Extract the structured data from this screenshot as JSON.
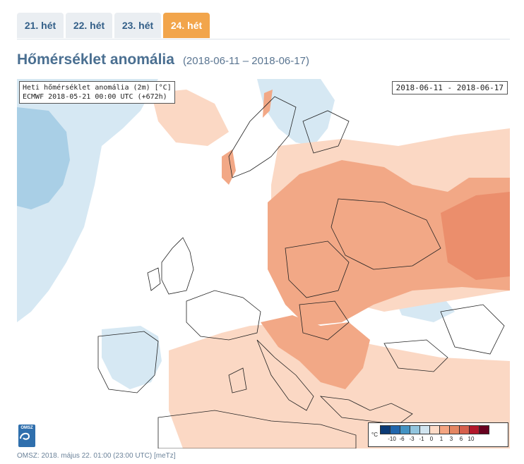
{
  "tabs": [
    {
      "label": "21. hét",
      "active": false
    },
    {
      "label": "22. hét",
      "active": false
    },
    {
      "label": "23. hét",
      "active": false
    },
    {
      "label": "24. hét",
      "active": true
    }
  ],
  "heading": {
    "title": "Hőmérséklet anomália",
    "date_range": "(2018-06-11 – 2018-06-17)"
  },
  "map": {
    "info_line1": "Heti hőmérséklet anomália (2m) [°C]",
    "info_line2": "ECMWF 2018-05-21 00:00 UTC (+672h)",
    "date_label": "2018-06-11 - 2018-06-17",
    "logo_text": "OMSZ",
    "legend": {
      "unit": "°C",
      "tick_labels": [
        "-10",
        "-6",
        "-3",
        "-1",
        "0",
        "1",
        "3",
        "6",
        "10"
      ],
      "colors": [
        "#0b3a75",
        "#2166ac",
        "#4393c3",
        "#92c5de",
        "#d1e5f0",
        "#fddbc7",
        "#f4a582",
        "#e48662",
        "#d6604d",
        "#b2182b",
        "#67001f"
      ]
    },
    "palette": {
      "cold_light": "#d6e8f3",
      "cold_mid": "#a9cfe6",
      "cold_strong": "#7fb3d8",
      "warm_light": "#fbd8c4",
      "warm_mid": "#f2a886",
      "warm_strong": "#eb8e6c"
    }
  },
  "footer": {
    "text": "OMSZ: 2018. május 22. 01:00 (23:00 UTC)  [meTz]"
  }
}
